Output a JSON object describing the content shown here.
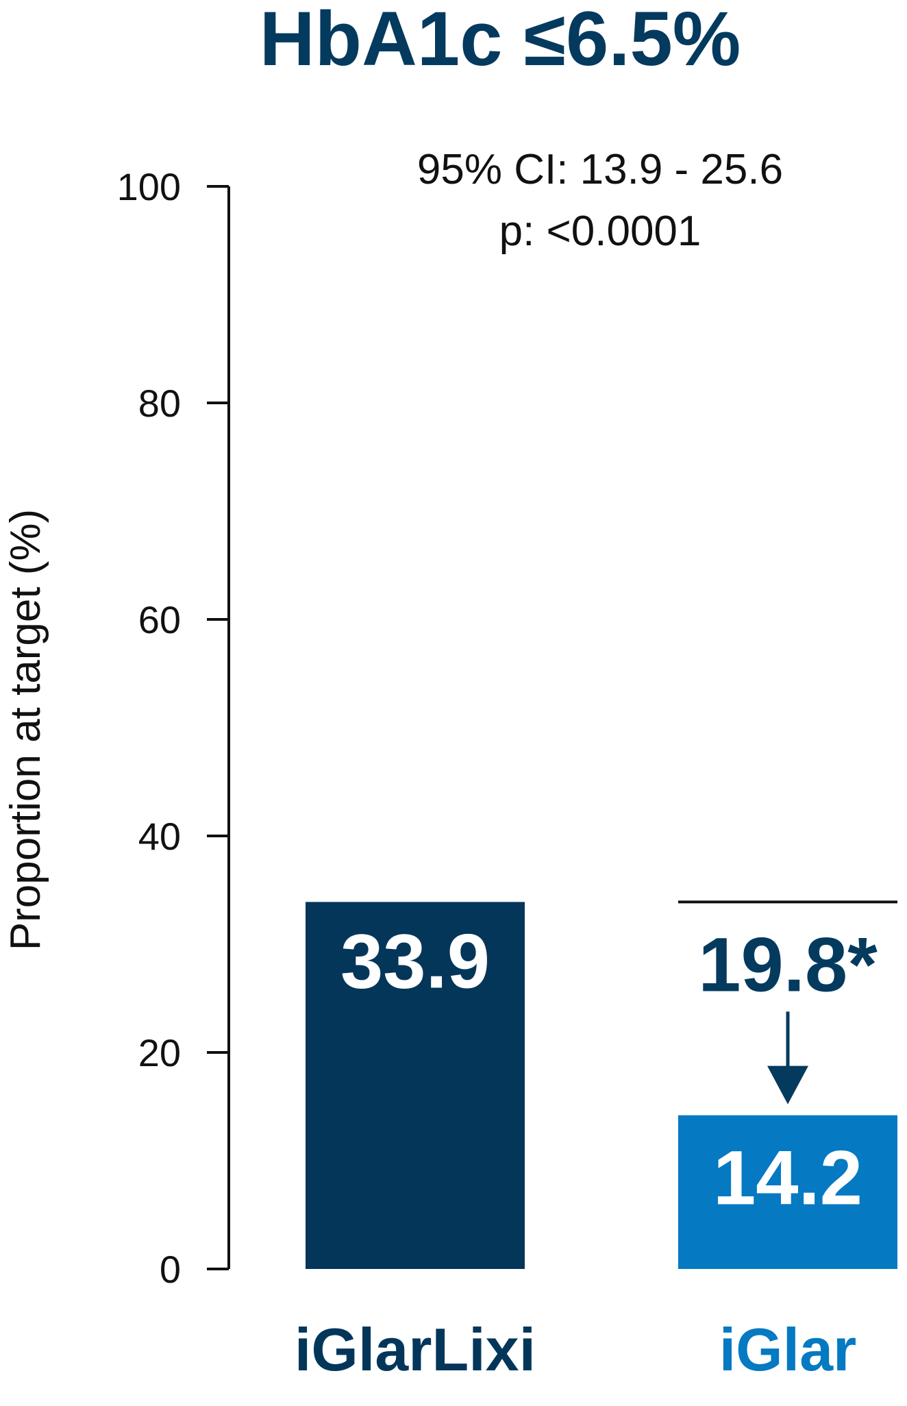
{
  "chart_data": {
    "type": "bar",
    "title": "HbA1c ≤6.5%",
    "ylabel": "Proportion at target (%)",
    "xlabel": "",
    "ylim": [
      0,
      100
    ],
    "yticks": [
      0,
      20,
      40,
      60,
      80,
      100
    ],
    "ytick_labels": [
      "0",
      "20",
      "40",
      "60",
      "80",
      "100"
    ],
    "categories": [
      "iGlarLixi",
      "iGlar"
    ],
    "values": [
      33.9,
      14.2
    ],
    "value_labels": [
      "33.9",
      "14.2"
    ],
    "annotations": {
      "ci": "95% CI: 13.9 - 25.6",
      "p_value": "p: <0.0001",
      "difference": "19.8*"
    },
    "grid": false,
    "colors": {
      "title": "#053a5f",
      "iGlarLixi": "#04365a",
      "iGlar": "#0579c2",
      "axis": "#111111"
    }
  }
}
